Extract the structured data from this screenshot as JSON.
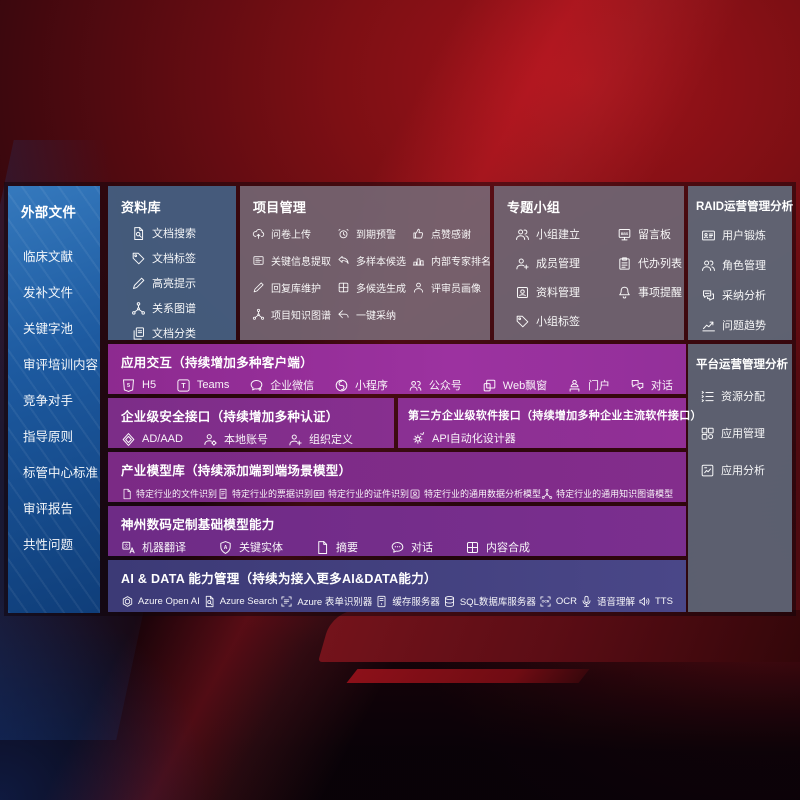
{
  "colors": {
    "bg_red": "#7d0f14",
    "sidebar_blue": "#1d5aa0",
    "accent_purple": "#8d2a90",
    "accent_indigo": "#3c3a76",
    "panel_gray": "#6d6170",
    "panel_steel": "#4d6784"
  },
  "sidebar": {
    "title": "外部文件",
    "items": [
      "临床文献",
      "发补文件",
      "关键字池",
      "审评培训内容",
      "竞争对手",
      "指导原则",
      "标管中心标准",
      "审评报告",
      "共性问题"
    ]
  },
  "panels": {
    "repository": {
      "title": "资料库",
      "items": [
        {
          "label": "文档搜索",
          "icon": "doc-search"
        },
        {
          "label": "文档标签",
          "icon": "tag"
        },
        {
          "label": "高亮提示",
          "icon": "pen"
        },
        {
          "label": "关系图谱",
          "icon": "graph"
        },
        {
          "label": "文档分类",
          "icon": "doc-copy"
        }
      ]
    },
    "project": {
      "title": "项目管理",
      "columns": [
        [
          {
            "label": "问卷上传",
            "icon": "cloud-upload"
          },
          {
            "label": "关键信息提取",
            "icon": "info-extract"
          },
          {
            "label": "回复库维护",
            "icon": "pen"
          },
          {
            "label": "项目知识图谱",
            "icon": "graph"
          }
        ],
        [
          {
            "label": "到期预警",
            "icon": "alarm"
          },
          {
            "label": "多样本候选",
            "icon": "reply-arrow"
          },
          {
            "label": "多候选生成",
            "icon": "grid-gen"
          },
          {
            "label": "一键采纳",
            "icon": "arrow-left"
          }
        ],
        [
          {
            "label": "点赞感谢",
            "icon": "thumbs-up"
          },
          {
            "label": "内部专家排名",
            "icon": "ranking"
          },
          {
            "label": "评审员画像",
            "icon": "person"
          }
        ]
      ]
    },
    "topic_group": {
      "title": "专题小组",
      "columns": [
        [
          {
            "label": "小组建立",
            "icon": "people"
          },
          {
            "label": "成员管理",
            "icon": "person-add"
          },
          {
            "label": "资料管理",
            "icon": "photo-doc"
          },
          {
            "label": "小组标签",
            "icon": "tag"
          }
        ],
        [
          {
            "label": "留言板",
            "icon": "bbs-board"
          },
          {
            "label": "代办列表",
            "icon": "todo-list"
          },
          {
            "label": "事项提醒",
            "icon": "bell"
          }
        ]
      ]
    },
    "raid_ops": {
      "title": "RAID运营管理分析",
      "items": [
        {
          "label": "用户锻炼",
          "icon": "user-card"
        },
        {
          "label": "角色管理",
          "icon": "people"
        },
        {
          "label": "采纳分析",
          "icon": "chat-analysis"
        },
        {
          "label": "问题趋势",
          "icon": "trend-chart"
        }
      ]
    },
    "platform_ops": {
      "title": "平台运营管理分析",
      "items": [
        {
          "label": "资源分配",
          "icon": "list"
        },
        {
          "label": "应用管理",
          "icon": "apps-grid"
        },
        {
          "label": "应用分析",
          "icon": "app-analysis"
        }
      ]
    },
    "interaction": {
      "title": "应用交互（持续增加多种客户端）",
      "items": [
        {
          "label": "H5",
          "icon": "html5"
        },
        {
          "label": "Teams",
          "icon": "teams"
        },
        {
          "label": "企业微信",
          "icon": "wechat"
        },
        {
          "label": "小程序",
          "icon": "miniprogram"
        },
        {
          "label": "公众号",
          "icon": "official-account"
        },
        {
          "label": "Web飘窗",
          "icon": "web-popup"
        },
        {
          "label": "门户",
          "icon": "portal"
        },
        {
          "label": "对话",
          "icon": "dialog"
        }
      ]
    },
    "security": {
      "title": "企业级安全接口（持续增加多种认证）",
      "items": [
        {
          "label": "AD/AAD",
          "icon": "azure-ad"
        },
        {
          "label": "本地账号",
          "icon": "person-gear"
        },
        {
          "label": "组织定义",
          "icon": "person-add"
        }
      ]
    },
    "third_party": {
      "title": "第三方企业级软件接口（持续增加多种企业主流软件接口）",
      "items": [
        {
          "label": "API自动化设计器",
          "icon": "api-gear"
        }
      ]
    },
    "industry_models": {
      "title": "产业模型库（持续添加端到端场景模型）",
      "items": [
        {
          "label": "特定行业的文件识别",
          "icon": "doc"
        },
        {
          "label": "特定行业的票据识别",
          "icon": "receipt"
        },
        {
          "label": "特定行业的证件识别",
          "icon": "user-card"
        },
        {
          "label": "特定行业的通用数据分析模型",
          "icon": "photo-doc"
        },
        {
          "label": "特定行业的通用知识图谱模型",
          "icon": "graph"
        }
      ]
    },
    "base_models": {
      "title": "神州数码定制基础模型能力",
      "items": [
        {
          "label": "机器翻译",
          "icon": "translate"
        },
        {
          "label": "关键实体",
          "icon": "entity-shield"
        },
        {
          "label": "摘要",
          "icon": "doc"
        },
        {
          "label": "对话",
          "icon": "chat-dots"
        },
        {
          "label": "内容合成",
          "icon": "grid-gen"
        }
      ]
    },
    "ai_data": {
      "title": "AI & DATA 能力管理（持续为接入更多AI&DATA能力）",
      "items": [
        {
          "label": "Azure Open AI",
          "icon": "openai"
        },
        {
          "label": "Azure Search",
          "icon": "doc-search"
        },
        {
          "label": "Azure 表单识别器",
          "icon": "form-recognizer"
        },
        {
          "label": "缓存服务器",
          "icon": "cache-server"
        },
        {
          "label": "SQL数据库服务器",
          "icon": "sql-db"
        },
        {
          "label": "OCR",
          "icon": "ocr"
        },
        {
          "label": "语音理解",
          "icon": "speech"
        },
        {
          "label": "TTS",
          "icon": "tts"
        }
      ]
    }
  }
}
